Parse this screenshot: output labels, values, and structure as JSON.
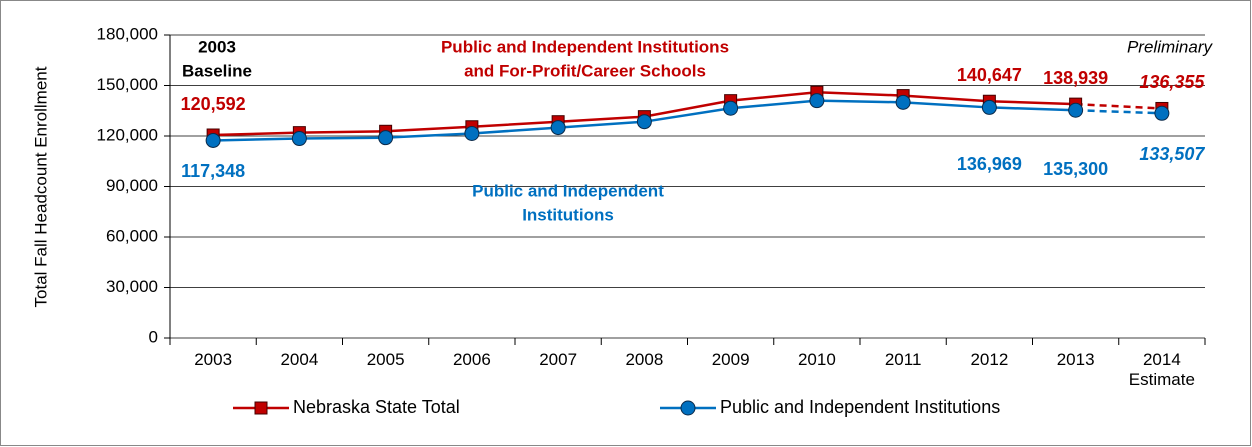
{
  "chart_data": {
    "type": "line",
    "y_axis_label": "Total Fall Headcount Enrollment",
    "categories": [
      "2003",
      "2004",
      "2005",
      "2006",
      "2007",
      "2008",
      "2009",
      "2010",
      "2011",
      "2012",
      "2013",
      "2014 Estimate"
    ],
    "series": [
      {
        "name": "Nebraska State Total",
        "color": "#c00000",
        "marker": "square",
        "values": [
          120592,
          122000,
          122800,
          125500,
          128500,
          131500,
          141000,
          146000,
          144000,
          140647,
          138939,
          136355
        ],
        "value_labels": [
          "120,592",
          null,
          null,
          null,
          null,
          null,
          null,
          null,
          null,
          "140,647",
          "138,939",
          "136,355"
        ]
      },
      {
        "name": "Public and Independent Institutions",
        "color": "#0070c0",
        "marker": "circle",
        "values": [
          117348,
          118500,
          119000,
          121500,
          125000,
          128500,
          136500,
          141000,
          140000,
          136969,
          135300,
          133507
        ],
        "value_labels": [
          "117,348",
          null,
          null,
          null,
          null,
          null,
          null,
          null,
          null,
          "136,969",
          "135,300",
          "133,507"
        ]
      }
    ],
    "dashed_last_segment": true,
    "annotations": [
      {
        "lines": [
          "2003",
          "Baseline"
        ],
        "color": "#000000"
      },
      {
        "lines": [
          "Public and Independent Institutions",
          "and For-Profit/Career Schools"
        ],
        "color": "#c00000"
      },
      {
        "lines": [
          "Public and Independent",
          "Institutions"
        ],
        "color": "#0070c0"
      },
      {
        "lines": [
          "Preliminary"
        ],
        "color": "#000000"
      }
    ],
    "ylim": [
      0,
      180000
    ],
    "yticks": [
      {
        "value": 0,
        "label": "0"
      },
      {
        "value": 30000,
        "label": "30,000"
      },
      {
        "value": 60000,
        "label": "60,000"
      },
      {
        "value": 90000,
        "label": "90,000"
      },
      {
        "value": 120000,
        "label": "120,000"
      },
      {
        "value": 150000,
        "label": "150,000"
      },
      {
        "value": 180000,
        "label": "180,000"
      }
    ],
    "grid": true,
    "legend": "bottom"
  }
}
